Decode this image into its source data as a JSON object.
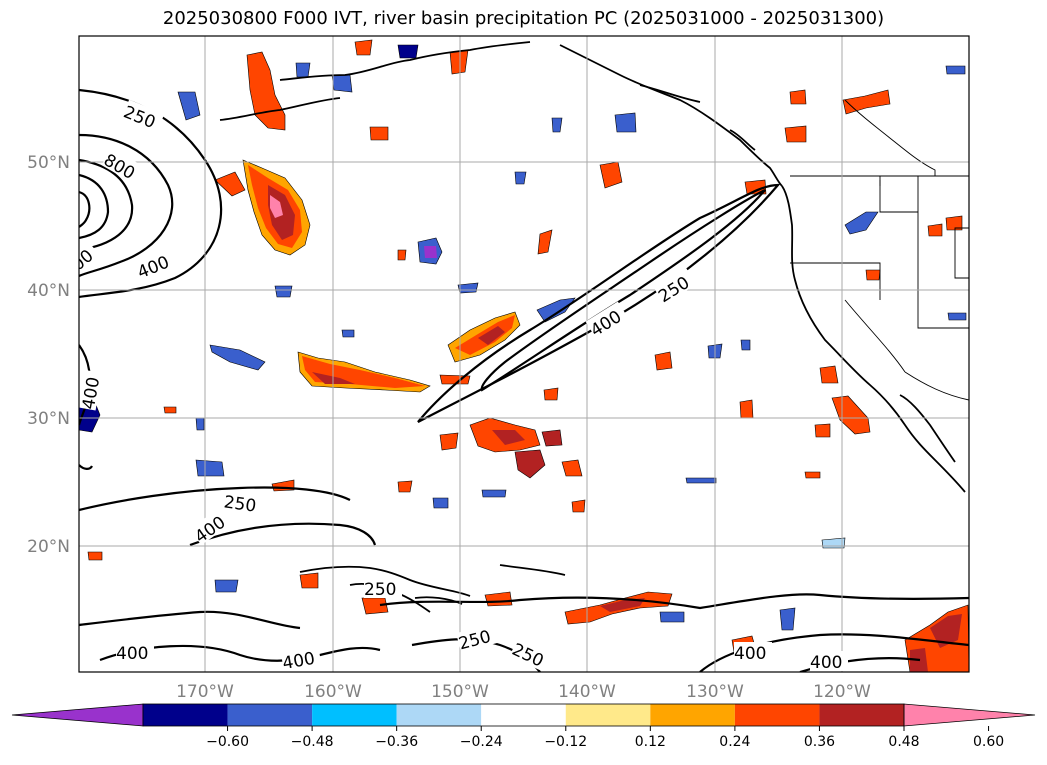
{
  "title": "2025030800 F000 IVT, river basin precipitation PC (2025031000 - 2025031300)",
  "lat_labels": [
    "50°N",
    "40°N",
    "30°N",
    "20°N"
  ],
  "lon_labels": [
    "170°W",
    "160°W",
    "150°W",
    "140°W",
    "130°W",
    "120°W"
  ],
  "contour_labels": [
    "250",
    "800",
    "400",
    "400",
    "250",
    "400",
    "250",
    "400",
    "250",
    "250",
    "250",
    "400",
    "400",
    "400",
    "400",
    "400"
  ],
  "colorbar": {
    "ticks": [
      "−0.60",
      "−0.48",
      "−0.36",
      "−0.24",
      "−0.12",
      "0.12",
      "0.24",
      "0.36",
      "0.48",
      "0.60"
    ],
    "colors": [
      "#9932cc",
      "#00008b",
      "#3a5fcd",
      "#00bfff",
      "#add8f6",
      "#ffffff",
      "#ffe98a",
      "#ffa500",
      "#ff4500",
      "#b22222",
      "#ff82ab"
    ]
  }
}
